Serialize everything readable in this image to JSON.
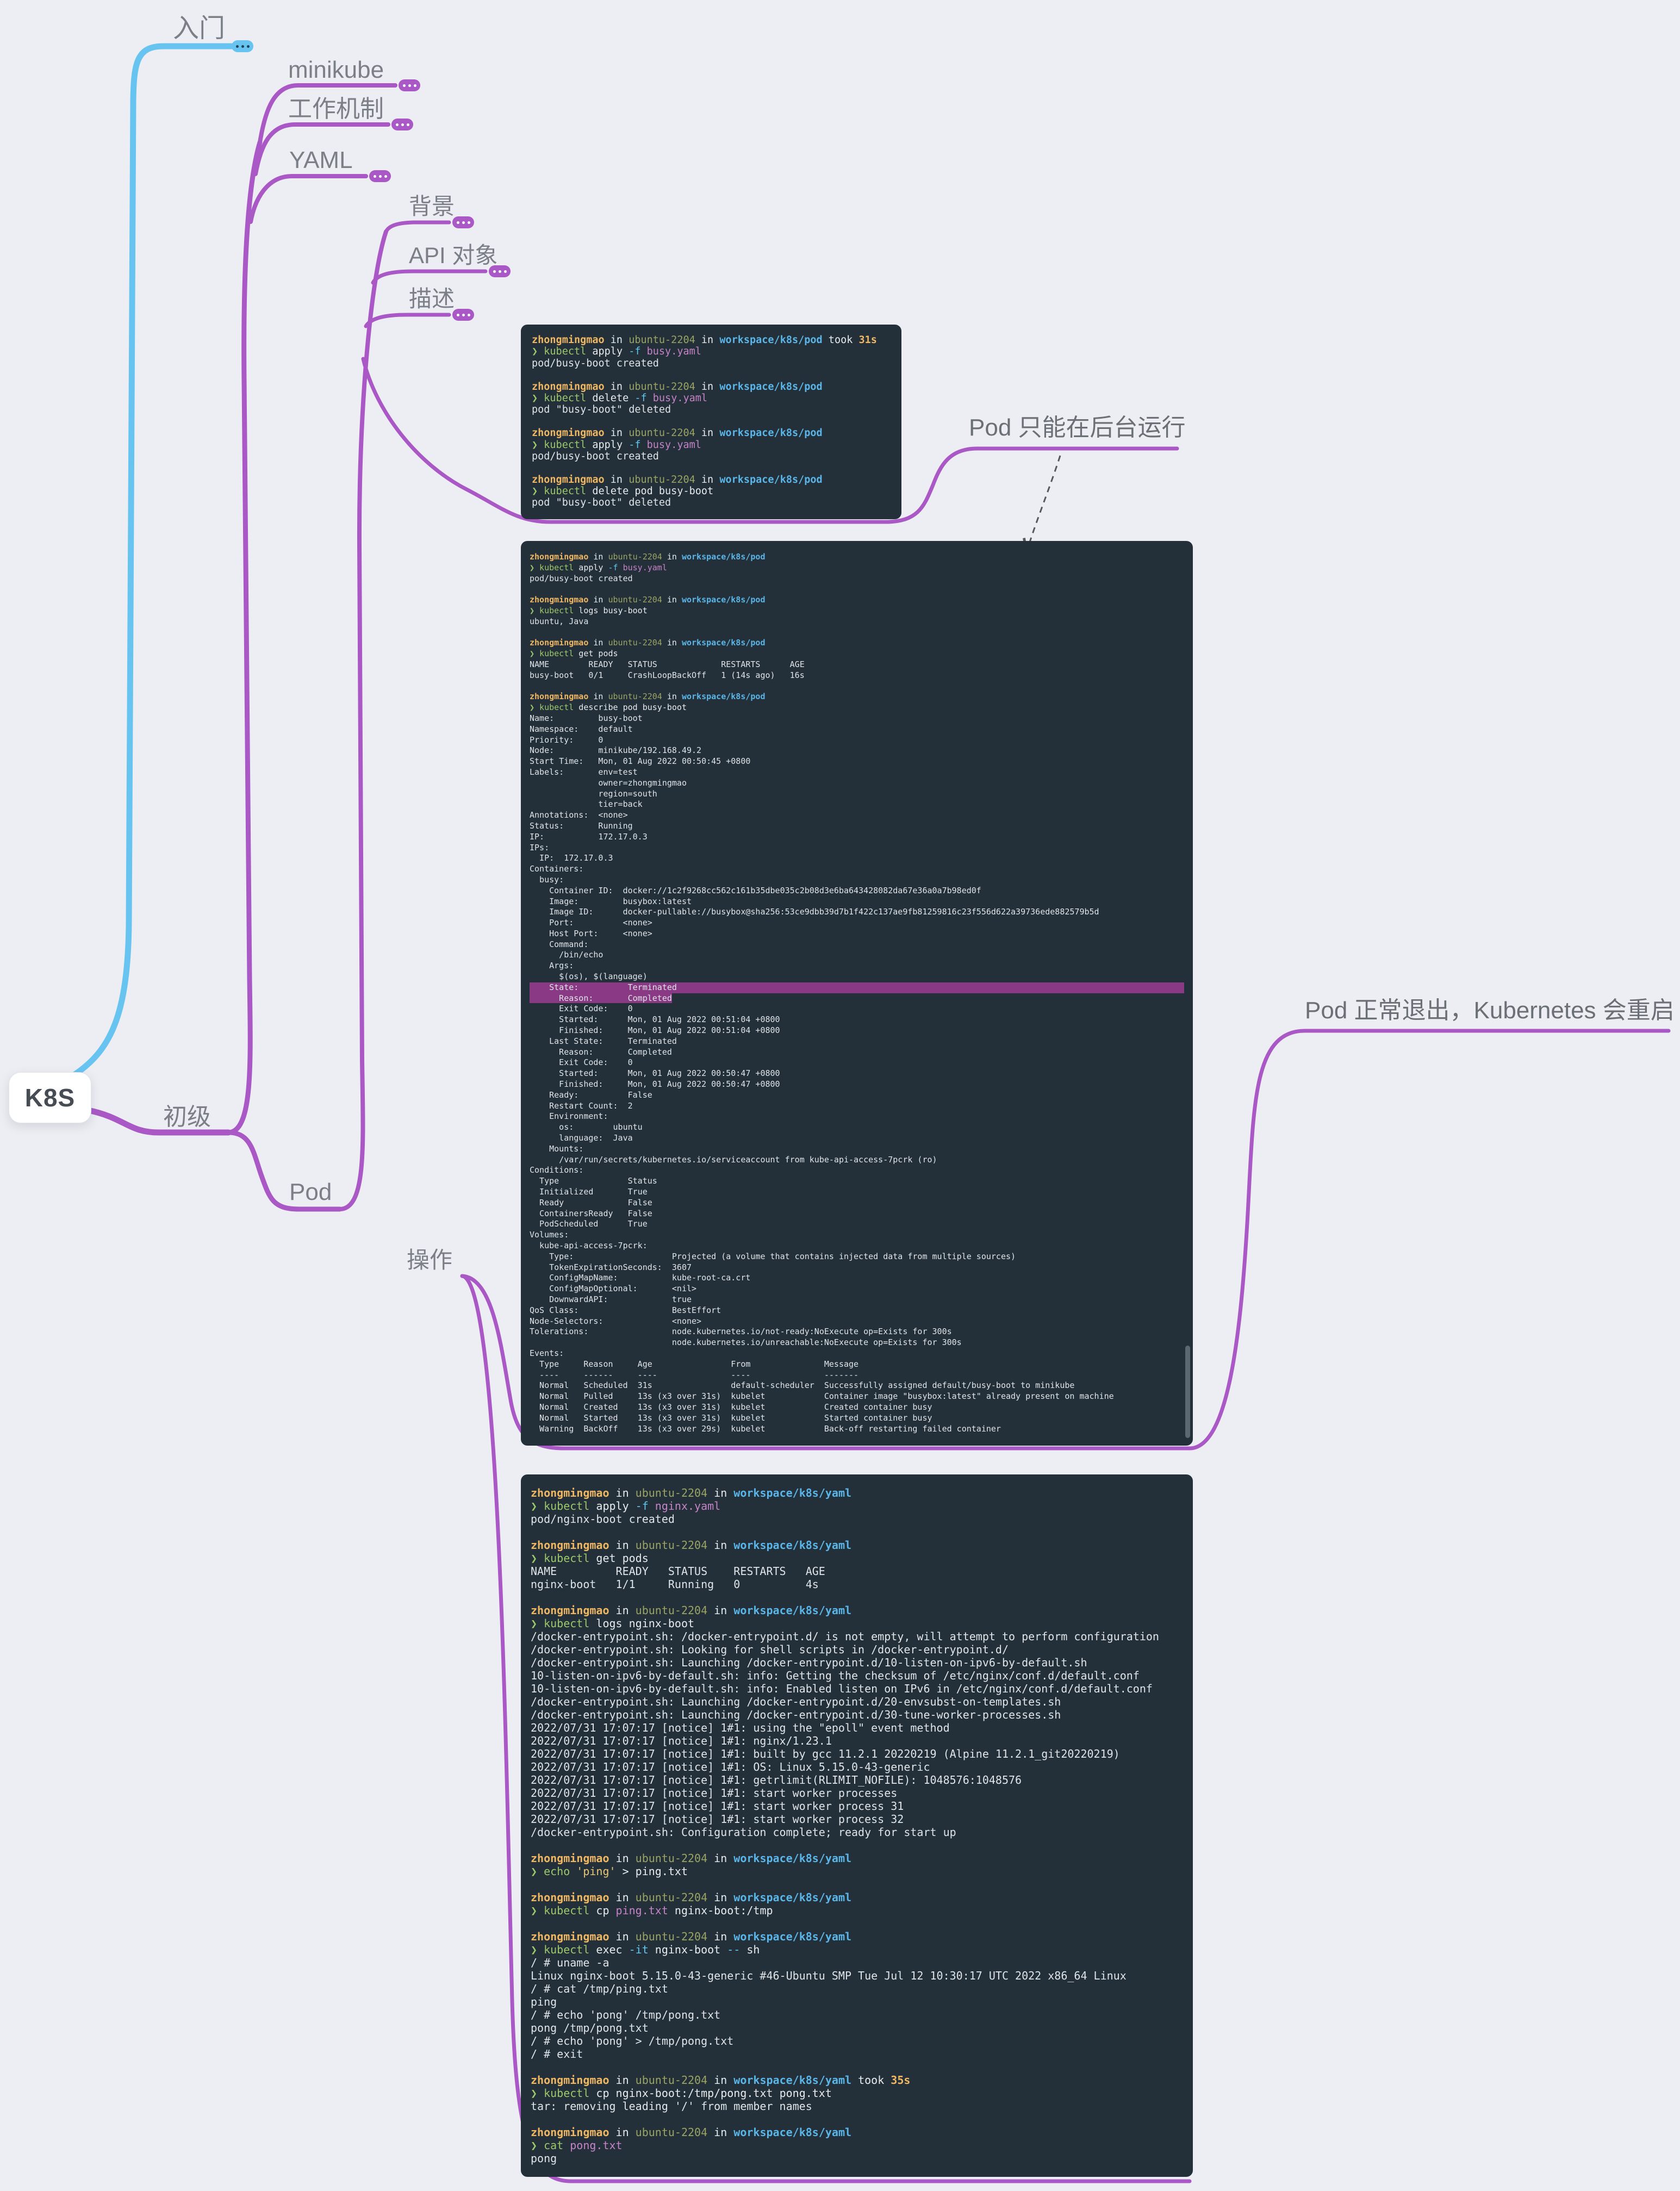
{
  "map": {
    "root_label": "K8S",
    "colors": {
      "branch_cyan": "#67c4f1",
      "branch_purple": "#a958c5",
      "terminal_bg": "#243039",
      "highlight": "#8a3a85",
      "page_bg": "#edeef3"
    },
    "topics": {
      "intro": "入门",
      "elementary": "初级",
      "minikube": "minikube",
      "mechanism": "工作机制",
      "yaml": "YAML",
      "pod": "Pod",
      "background": "背景",
      "api_object": "API 对象",
      "describe": "描述",
      "operation": "操作"
    },
    "annotations": {
      "bg_run": "Pod 只能在后台运行",
      "restart": "Pod 正常退出，Kubernetes 会重启 Pod"
    }
  },
  "terminals": {
    "t1": {
      "lines": [
        [
          [
            "u",
            "zhongmingmao"
          ],
          [
            "w",
            " in "
          ],
          [
            "h",
            "ubuntu-2204"
          ],
          [
            "w",
            " in "
          ],
          [
            "p",
            "workspace/k8s/pod"
          ],
          [
            "w",
            " took "
          ],
          [
            "k",
            "31s"
          ]
        ],
        [
          [
            "g",
            "❯ kubectl"
          ],
          [
            "w",
            " apply "
          ],
          [
            "c",
            "-f"
          ],
          [
            "m",
            " busy.yaml"
          ]
        ],
        "pod/busy-boot created",
        "",
        [
          [
            "u",
            "zhongmingmao"
          ],
          [
            "w",
            " in "
          ],
          [
            "h",
            "ubuntu-2204"
          ],
          [
            "w",
            " in "
          ],
          [
            "p",
            "workspace/k8s/pod"
          ]
        ],
        [
          [
            "g",
            "❯ kubectl"
          ],
          [
            "w",
            " delete "
          ],
          [
            "c",
            "-f"
          ],
          [
            "m",
            " busy.yaml"
          ]
        ],
        "pod \"busy-boot\" deleted",
        "",
        [
          [
            "u",
            "zhongmingmao"
          ],
          [
            "w",
            " in "
          ],
          [
            "h",
            "ubuntu-2204"
          ],
          [
            "w",
            " in "
          ],
          [
            "p",
            "workspace/k8s/pod"
          ]
        ],
        [
          [
            "g",
            "❯ kubectl"
          ],
          [
            "w",
            " apply "
          ],
          [
            "c",
            "-f"
          ],
          [
            "m",
            " busy.yaml"
          ]
        ],
        "pod/busy-boot created",
        "",
        [
          [
            "u",
            "zhongmingmao"
          ],
          [
            "w",
            " in "
          ],
          [
            "h",
            "ubuntu-2204"
          ],
          [
            "w",
            " in "
          ],
          [
            "p",
            "workspace/k8s/pod"
          ]
        ],
        [
          [
            "g",
            "❯ kubectl"
          ],
          [
            "w",
            " delete pod busy-boot"
          ]
        ],
        "pod \"busy-boot\" deleted"
      ]
    },
    "t2": {
      "highlights": [
        {
          "line": 40,
          "mode": "full"
        },
        {
          "line": 41,
          "mode": "text"
        }
      ],
      "lines": [
        [
          [
            "u",
            "zhongmingmao"
          ],
          [
            "w",
            " in "
          ],
          [
            "h",
            "ubuntu-2204"
          ],
          [
            "w",
            " in "
          ],
          [
            "p",
            "workspace/k8s/pod"
          ]
        ],
        [
          [
            "g",
            "❯ kubectl"
          ],
          [
            "w",
            " apply "
          ],
          [
            "c",
            "-f"
          ],
          [
            "m",
            " busy.yaml"
          ]
        ],
        "pod/busy-boot created",
        "",
        [
          [
            "u",
            "zhongmingmao"
          ],
          [
            "w",
            " in "
          ],
          [
            "h",
            "ubuntu-2204"
          ],
          [
            "w",
            " in "
          ],
          [
            "p",
            "workspace/k8s/pod"
          ]
        ],
        [
          [
            "g",
            "❯ kubectl"
          ],
          [
            "w",
            " logs busy-boot"
          ]
        ],
        "ubuntu, Java",
        "",
        [
          [
            "u",
            "zhongmingmao"
          ],
          [
            "w",
            " in "
          ],
          [
            "h",
            "ubuntu-2204"
          ],
          [
            "w",
            " in "
          ],
          [
            "p",
            "workspace/k8s/pod"
          ]
        ],
        [
          [
            "g",
            "❯ kubectl"
          ],
          [
            "w",
            " get pods"
          ]
        ],
        "NAME        READY   STATUS             RESTARTS      AGE",
        "busy-boot   0/1     CrashLoopBackOff   1 (14s ago)   16s",
        "",
        [
          [
            "u",
            "zhongmingmao"
          ],
          [
            "w",
            " in "
          ],
          [
            "h",
            "ubuntu-2204"
          ],
          [
            "w",
            " in "
          ],
          [
            "p",
            "workspace/k8s/pod"
          ]
        ],
        [
          [
            "g",
            "❯ kubectl"
          ],
          [
            "w",
            " describe pod busy-boot"
          ]
        ],
        "Name:         busy-boot",
        "Namespace:    default",
        "Priority:     0",
        "Node:         minikube/192.168.49.2",
        "Start Time:   Mon, 01 Aug 2022 00:50:45 +0800",
        "Labels:       env=test",
        "              owner=zhongmingmao",
        "              region=south",
        "              tier=back",
        "Annotations:  <none>",
        "Status:       Running",
        "IP:           172.17.0.3",
        "IPs:",
        "  IP:  172.17.0.3",
        "Containers:",
        "  busy:",
        "    Container ID:  docker://1c2f9268cc562c161b35dbe035c2b08d3e6ba643428082da67e36a0a7b98ed0f",
        "    Image:         busybox:latest",
        "    Image ID:      docker-pullable://busybox@sha256:53ce9dbb39d7b1f422c137ae9fb81259816c23f556d622a39736ede882579b5d",
        "    Port:          <none>",
        "    Host Port:     <none>",
        "    Command:",
        "      /bin/echo",
        "    Args:",
        "      $(os), $(language)",
        "    State:          Terminated",
        "      Reason:       Completed",
        "      Exit Code:    0",
        "      Started:      Mon, 01 Aug 2022 00:51:04 +0800",
        "      Finished:     Mon, 01 Aug 2022 00:51:04 +0800",
        "    Last State:     Terminated",
        "      Reason:       Completed",
        "      Exit Code:    0",
        "      Started:      Mon, 01 Aug 2022 00:50:47 +0800",
        "      Finished:     Mon, 01 Aug 2022 00:50:47 +0800",
        "    Ready:          False",
        "    Restart Count:  2",
        "    Environment:",
        "      os:        ubuntu",
        "      language:  Java",
        "    Mounts:",
        "      /var/run/secrets/kubernetes.io/serviceaccount from kube-api-access-7pcrk (ro)",
        "Conditions:",
        "  Type              Status",
        "  Initialized       True",
        "  Ready             False",
        "  ContainersReady   False",
        "  PodScheduled      True",
        "Volumes:",
        "  kube-api-access-7pcrk:",
        "    Type:                    Projected (a volume that contains injected data from multiple sources)",
        "    TokenExpirationSeconds:  3607",
        "    ConfigMapName:           kube-root-ca.crt",
        "    ConfigMapOptional:       <nil>",
        "    DownwardAPI:             true",
        "QoS Class:                   BestEffort",
        "Node-Selectors:              <none>",
        "Tolerations:                 node.kubernetes.io/not-ready:NoExecute op=Exists for 300s",
        "                             node.kubernetes.io/unreachable:NoExecute op=Exists for 300s",
        "Events:",
        "  Type     Reason     Age                From               Message",
        "  ----     ------     ----               ----               -------",
        "  Normal   Scheduled  31s                default-scheduler  Successfully assigned default/busy-boot to minikube",
        "  Normal   Pulled     13s (x3 over 31s)  kubelet            Container image \"busybox:latest\" already present on machine",
        "  Normal   Created    13s (x3 over 31s)  kubelet            Created container busy",
        "  Normal   Started    13s (x3 over 31s)  kubelet            Started container busy",
        "  Warning  BackOff    13s (x3 over 29s)  kubelet            Back-off restarting failed container"
      ]
    },
    "t3": {
      "lines": [
        [
          [
            "u",
            "zhongmingmao"
          ],
          [
            "w",
            " in "
          ],
          [
            "h",
            "ubuntu-2204"
          ],
          [
            "w",
            " in "
          ],
          [
            "p",
            "workspace/k8s/yaml"
          ]
        ],
        [
          [
            "g",
            "❯ kubectl"
          ],
          [
            "w",
            " apply "
          ],
          [
            "c",
            "-f"
          ],
          [
            "m",
            " nginx.yaml"
          ]
        ],
        "pod/nginx-boot created",
        "",
        [
          [
            "u",
            "zhongmingmao"
          ],
          [
            "w",
            " in "
          ],
          [
            "h",
            "ubuntu-2204"
          ],
          [
            "w",
            " in "
          ],
          [
            "p",
            "workspace/k8s/yaml"
          ]
        ],
        [
          [
            "g",
            "❯ kubectl"
          ],
          [
            "w",
            " get pods"
          ]
        ],
        "NAME         READY   STATUS    RESTARTS   AGE",
        "nginx-boot   1/1     Running   0          4s",
        "",
        [
          [
            "u",
            "zhongmingmao"
          ],
          [
            "w",
            " in "
          ],
          [
            "h",
            "ubuntu-2204"
          ],
          [
            "w",
            " in "
          ],
          [
            "p",
            "workspace/k8s/yaml"
          ]
        ],
        [
          [
            "g",
            "❯ kubectl"
          ],
          [
            "w",
            " logs nginx-boot"
          ]
        ],
        "/docker-entrypoint.sh: /docker-entrypoint.d/ is not empty, will attempt to perform configuration",
        "/docker-entrypoint.sh: Looking for shell scripts in /docker-entrypoint.d/",
        "/docker-entrypoint.sh: Launching /docker-entrypoint.d/10-listen-on-ipv6-by-default.sh",
        "10-listen-on-ipv6-by-default.sh: info: Getting the checksum of /etc/nginx/conf.d/default.conf",
        "10-listen-on-ipv6-by-default.sh: info: Enabled listen on IPv6 in /etc/nginx/conf.d/default.conf",
        "/docker-entrypoint.sh: Launching /docker-entrypoint.d/20-envsubst-on-templates.sh",
        "/docker-entrypoint.sh: Launching /docker-entrypoint.d/30-tune-worker-processes.sh",
        "2022/07/31 17:07:17 [notice] 1#1: using the \"epoll\" event method",
        "2022/07/31 17:07:17 [notice] 1#1: nginx/1.23.1",
        "2022/07/31 17:07:17 [notice] 1#1: built by gcc 11.2.1 20220219 (Alpine 11.2.1_git20220219)",
        "2022/07/31 17:07:17 [notice] 1#1: OS: Linux 5.15.0-43-generic",
        "2022/07/31 17:07:17 [notice] 1#1: getrlimit(RLIMIT_NOFILE): 1048576:1048576",
        "2022/07/31 17:07:17 [notice] 1#1: start worker processes",
        "2022/07/31 17:07:17 [notice] 1#1: start worker process 31",
        "2022/07/31 17:07:17 [notice] 1#1: start worker process 32",
        "/docker-entrypoint.sh: Configuration complete; ready for start up",
        "",
        [
          [
            "u",
            "zhongmingmao"
          ],
          [
            "w",
            " in "
          ],
          [
            "h",
            "ubuntu-2204"
          ],
          [
            "w",
            " in "
          ],
          [
            "p",
            "workspace/k8s/yaml"
          ]
        ],
        [
          [
            "g",
            "❯ echo"
          ],
          [
            "w",
            " "
          ],
          [
            "y",
            "'ping'"
          ],
          [
            "w",
            " > ping.txt"
          ]
        ],
        "",
        [
          [
            "u",
            "zhongmingmao"
          ],
          [
            "w",
            " in "
          ],
          [
            "h",
            "ubuntu-2204"
          ],
          [
            "w",
            " in "
          ],
          [
            "p",
            "workspace/k8s/yaml"
          ]
        ],
        [
          [
            "g",
            "❯ kubectl"
          ],
          [
            "w",
            " cp "
          ],
          [
            "m",
            "ping.txt"
          ],
          [
            "w",
            " nginx-boot:/tmp"
          ]
        ],
        "",
        [
          [
            "u",
            "zhongmingmao"
          ],
          [
            "w",
            " in "
          ],
          [
            "h",
            "ubuntu-2204"
          ],
          [
            "w",
            " in "
          ],
          [
            "p",
            "workspace/k8s/yaml"
          ]
        ],
        [
          [
            "g",
            "❯ kubectl"
          ],
          [
            "w",
            " exec "
          ],
          [
            "c",
            "-it"
          ],
          [
            "w",
            " nginx-boot "
          ],
          [
            "c",
            "--"
          ],
          [
            "w",
            " sh"
          ]
        ],
        "/ # uname -a",
        "Linux nginx-boot 5.15.0-43-generic #46-Ubuntu SMP Tue Jul 12 10:30:17 UTC 2022 x86_64 Linux",
        "/ # cat /tmp/ping.txt",
        "ping",
        "/ # echo 'pong' /tmp/pong.txt",
        "pong /tmp/pong.txt",
        "/ # echo 'pong' > /tmp/pong.txt",
        "/ # exit",
        "",
        [
          [
            "u",
            "zhongmingmao"
          ],
          [
            "w",
            " in "
          ],
          [
            "h",
            "ubuntu-2204"
          ],
          [
            "w",
            " in "
          ],
          [
            "p",
            "workspace/k8s/yaml"
          ],
          [
            "w",
            " took "
          ],
          [
            "k",
            "35s"
          ]
        ],
        [
          [
            "g",
            "❯ kubectl"
          ],
          [
            "w",
            " cp nginx-boot:/tmp/pong.txt pong.txt"
          ]
        ],
        "tar: removing leading '/' from member names",
        "",
        [
          [
            "u",
            "zhongmingmao"
          ],
          [
            "w",
            " in "
          ],
          [
            "h",
            "ubuntu-2204"
          ],
          [
            "w",
            " in "
          ],
          [
            "p",
            "workspace/k8s/yaml"
          ]
        ],
        [
          [
            "g",
            "❯ cat"
          ],
          [
            "m",
            " pong.txt"
          ]
        ],
        "pong"
      ]
    }
  }
}
